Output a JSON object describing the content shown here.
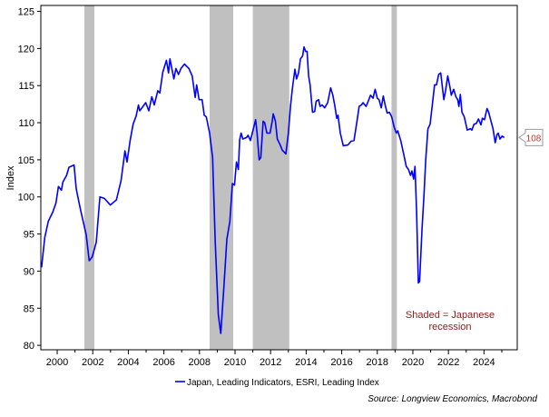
{
  "chart_data": {
    "type": "line",
    "title": "",
    "xlabel": "",
    "ylabel": "Index",
    "xlim": [
      1999.08,
      2025.87
    ],
    "ylim": [
      79.4,
      125.8
    ],
    "grid": false,
    "yticks": [
      80,
      85,
      90,
      95,
      100,
      105,
      110,
      115,
      120,
      125
    ],
    "xticks": [
      2000,
      2002,
      2004,
      2006,
      2008,
      2010,
      2012,
      2014,
      2016,
      2018,
      2020,
      2022,
      2024
    ],
    "recessions": [
      [
        2001.53,
        2002.09
      ],
      [
        2008.57,
        2009.9
      ],
      [
        2011.0,
        2013.05
      ],
      [
        2018.8,
        2019.1
      ]
    ],
    "annotation": [
      "Shaded = Japanese",
      "recession"
    ],
    "last_value_label": "108",
    "legend": {
      "placement": "bottom-center",
      "label": "Japan, Leading Indicators, ESRI, Leading Index"
    },
    "source": "Source: Longview Economics, Macrobond",
    "colors": {
      "series": "#0000ff",
      "recession": "#c0c0c0",
      "annotation": "#8b1a1a",
      "callout": "#c0392b"
    },
    "series": [
      {
        "name": "Japan, Leading Indicators, ESRI, Leading Index",
        "points": [
          [
            1999.12,
            90.5
          ],
          [
            1999.3,
            94.5
          ],
          [
            1999.5,
            96.7
          ],
          [
            1999.76,
            98
          ],
          [
            1999.93,
            99.2
          ],
          [
            2000.07,
            101.4
          ],
          [
            2000.24,
            100.9
          ],
          [
            2000.32,
            102
          ],
          [
            2000.53,
            102.9
          ],
          [
            2000.66,
            104
          ],
          [
            2000.95,
            104.3
          ],
          [
            2001.07,
            101.1
          ],
          [
            2001.3,
            98.4
          ],
          [
            2001.63,
            94.9
          ],
          [
            2001.8,
            91.4
          ],
          [
            2001.97,
            91.9
          ],
          [
            2002.2,
            93.9
          ],
          [
            2002.4,
            100
          ],
          [
            2002.65,
            99.8
          ],
          [
            2002.99,
            98.9
          ],
          [
            2003.33,
            99.6
          ],
          [
            2003.59,
            102.2
          ],
          [
            2003.81,
            106.2
          ],
          [
            2003.93,
            104.7
          ],
          [
            2004.1,
            107.6
          ],
          [
            2004.27,
            109.8
          ],
          [
            2004.44,
            110.9
          ],
          [
            2004.57,
            112.4
          ],
          [
            2004.64,
            111.6
          ],
          [
            2004.98,
            112.7
          ],
          [
            2005.15,
            111.6
          ],
          [
            2005.32,
            113.5
          ],
          [
            2005.46,
            112.4
          ],
          [
            2005.66,
            114.3
          ],
          [
            2005.77,
            114
          ],
          [
            2005.94,
            116.8
          ],
          [
            2006.14,
            118.4
          ],
          [
            2006.26,
            116.7
          ],
          [
            2006.34,
            118.6
          ],
          [
            2006.56,
            115.9
          ],
          [
            2006.68,
            117.3
          ],
          [
            2006.82,
            116.5
          ],
          [
            2006.96,
            117.3
          ],
          [
            2007.16,
            117.9
          ],
          [
            2007.41,
            117.3
          ],
          [
            2007.59,
            116.3
          ],
          [
            2007.76,
            113.4
          ],
          [
            2007.84,
            115.1
          ],
          [
            2007.98,
            113.1
          ],
          [
            2008.15,
            113.1
          ],
          [
            2008.27,
            111
          ],
          [
            2008.38,
            110.8
          ],
          [
            2008.57,
            108.6
          ],
          [
            2008.74,
            105.3
          ],
          [
            2008.89,
            93.9
          ],
          [
            2009.06,
            84.1
          ],
          [
            2009.2,
            81.6
          ],
          [
            2009.37,
            87.8
          ],
          [
            2009.54,
            94.3
          ],
          [
            2009.71,
            96.7
          ],
          [
            2009.85,
            101.8
          ],
          [
            2009.97,
            101.6
          ],
          [
            2010.08,
            104.7
          ],
          [
            2010.19,
            103.7
          ],
          [
            2010.26,
            107.7
          ],
          [
            2010.34,
            108.6
          ],
          [
            2010.44,
            107.8
          ],
          [
            2010.65,
            108
          ],
          [
            2010.73,
            108.3
          ],
          [
            2010.87,
            107.6
          ],
          [
            2011.16,
            110.4
          ],
          [
            2011.24,
            108.6
          ],
          [
            2011.36,
            105
          ],
          [
            2011.45,
            105.3
          ],
          [
            2011.58,
            110.2
          ],
          [
            2011.67,
            110
          ],
          [
            2011.79,
            108.6
          ],
          [
            2011.97,
            108.6
          ],
          [
            2012.09,
            110.2
          ],
          [
            2012.15,
            111.2
          ],
          [
            2012.27,
            110.2
          ],
          [
            2012.38,
            107.8
          ],
          [
            2012.52,
            107.1
          ],
          [
            2012.66,
            106.3
          ],
          [
            2012.86,
            105.8
          ],
          [
            2013.0,
            108.6
          ],
          [
            2013.12,
            112.2
          ],
          [
            2013.23,
            114.7
          ],
          [
            2013.37,
            117.2
          ],
          [
            2013.46,
            115.9
          ],
          [
            2013.57,
            116.7
          ],
          [
            2013.68,
            118.6
          ],
          [
            2013.8,
            119
          ],
          [
            2013.88,
            120.2
          ],
          [
            2013.97,
            119.6
          ],
          [
            2014.05,
            119.6
          ],
          [
            2014.14,
            116.3
          ],
          [
            2014.22,
            115.1
          ],
          [
            2014.36,
            111.4
          ],
          [
            2014.48,
            111.5
          ],
          [
            2014.56,
            112.9
          ],
          [
            2014.7,
            113.1
          ],
          [
            2014.78,
            112.2
          ],
          [
            2014.9,
            112.4
          ],
          [
            2015.04,
            112
          ],
          [
            2015.21,
            112.7
          ],
          [
            2015.38,
            114.7
          ],
          [
            2015.5,
            113.7
          ],
          [
            2015.62,
            112.2
          ],
          [
            2015.72,
            110.6
          ],
          [
            2015.79,
            111
          ],
          [
            2015.92,
            108.6
          ],
          [
            2016.09,
            106.9
          ],
          [
            2016.35,
            107
          ],
          [
            2016.52,
            107.5
          ],
          [
            2016.69,
            107.6
          ],
          [
            2016.86,
            110.2
          ],
          [
            2016.98,
            112.2
          ],
          [
            2017.11,
            112.4
          ],
          [
            2017.2,
            112.7
          ],
          [
            2017.37,
            112.2
          ],
          [
            2017.49,
            112.9
          ],
          [
            2017.62,
            113.7
          ],
          [
            2017.76,
            113.3
          ],
          [
            2017.88,
            114.5
          ],
          [
            2018.0,
            113.3
          ],
          [
            2018.1,
            113.1
          ],
          [
            2018.22,
            112
          ],
          [
            2018.34,
            113.6
          ],
          [
            2018.44,
            112.4
          ],
          [
            2018.56,
            111.3
          ],
          [
            2018.68,
            111.4
          ],
          [
            2018.81,
            110.8
          ],
          [
            2018.95,
            109.4
          ],
          [
            2019.07,
            108.6
          ],
          [
            2019.15,
            108.9
          ],
          [
            2019.32,
            107.6
          ],
          [
            2019.49,
            105.7
          ],
          [
            2019.63,
            104.1
          ],
          [
            2019.75,
            103.7
          ],
          [
            2019.87,
            102.9
          ],
          [
            2019.95,
            103.5
          ],
          [
            2020.04,
            102.4
          ],
          [
            2020.12,
            104.1
          ],
          [
            2020.21,
            98
          ],
          [
            2020.31,
            88.4
          ],
          [
            2020.38,
            88.6
          ],
          [
            2020.51,
            95.5
          ],
          [
            2020.63,
            100.4
          ],
          [
            2020.72,
            104.9
          ],
          [
            2020.85,
            109.2
          ],
          [
            2020.97,
            109.8
          ],
          [
            2021.11,
            112.7
          ],
          [
            2021.22,
            115.1
          ],
          [
            2021.33,
            115.1
          ],
          [
            2021.45,
            116.5
          ],
          [
            2021.57,
            116.7
          ],
          [
            2021.74,
            113.1
          ],
          [
            2021.84,
            114.3
          ],
          [
            2021.96,
            116.3
          ],
          [
            2022.08,
            114.9
          ],
          [
            2022.16,
            113.7
          ],
          [
            2022.3,
            114.5
          ],
          [
            2022.42,
            113.5
          ],
          [
            2022.52,
            113.1
          ],
          [
            2022.59,
            112.2
          ],
          [
            2022.67,
            113.8
          ],
          [
            2022.76,
            111.4
          ],
          [
            2022.89,
            110.8
          ],
          [
            2023.06,
            109
          ],
          [
            2023.23,
            109.2
          ],
          [
            2023.32,
            109
          ],
          [
            2023.44,
            109.8
          ],
          [
            2023.57,
            109.9
          ],
          [
            2023.69,
            110.5
          ],
          [
            2023.83,
            109.7
          ],
          [
            2023.91,
            110.6
          ],
          [
            2024.03,
            110.4
          ],
          [
            2024.17,
            111.9
          ],
          [
            2024.25,
            111.5
          ],
          [
            2024.34,
            110.7
          ],
          [
            2024.51,
            109.2
          ],
          [
            2024.63,
            107.3
          ],
          [
            2024.73,
            108.4
          ],
          [
            2024.8,
            108.6
          ],
          [
            2024.9,
            107.8
          ],
          [
            2025.02,
            108.2
          ],
          [
            2025.14,
            108
          ]
        ]
      }
    ]
  }
}
